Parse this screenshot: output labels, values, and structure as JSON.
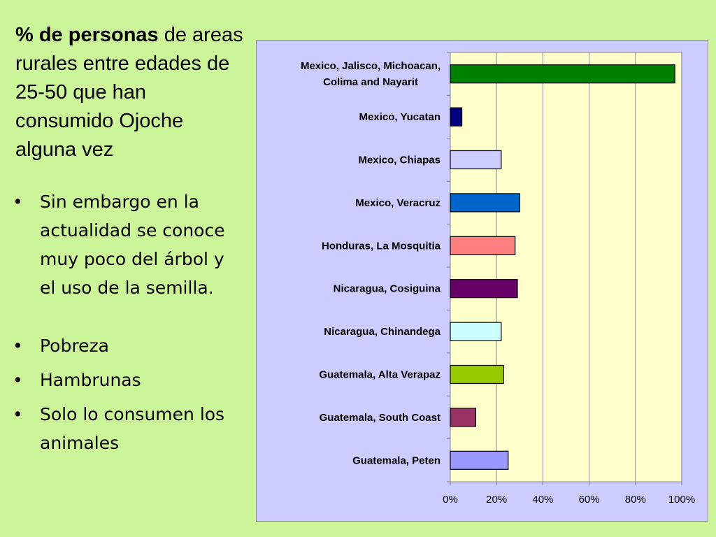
{
  "slide": {
    "title_bold": "% de personas",
    "title_rest": " de areas rurales entre edades de 25-50 que han consumido Ojoche alguna vez",
    "bullets": [
      {
        "marker": "•",
        "text": "Sin embargo  en la actualidad se conoce muy poco del árbol y el uso de la semilla."
      },
      {
        "marker": "•",
        "text": "Pobreza"
      },
      {
        "marker": "•",
        "text": "Hambrunas"
      },
      {
        "marker": "•",
        "text": "Solo lo consumen los animales"
      }
    ]
  },
  "chart_data": {
    "type": "bar",
    "orientation": "horizontal",
    "title": "",
    "xlabel": "",
    "ylabel": "",
    "xlim": [
      0,
      100
    ],
    "unit": "%",
    "grid": true,
    "legend": "none",
    "plot_background": "#ffffcc",
    "frame_background": "#ccccff",
    "x_ticks": [
      "0%",
      "20%",
      "40%",
      "60%",
      "80%",
      "100%"
    ],
    "categories": [
      [
        "Mexico, Jalisco, Michoacan,",
        "Colima and Nayarit"
      ],
      [
        "Mexico, Yucatan"
      ],
      [
        "Mexico, Chiapas"
      ],
      [
        "Mexico, Veracruz"
      ],
      [
        "Honduras, La Mosquitia"
      ],
      [
        "Nicaragua, Cosiguina"
      ],
      [
        "Nicaragua, Chinandega"
      ],
      [
        "Guatemala, Alta Verapaz"
      ],
      [
        "Guatemala, South Coast"
      ],
      [
        "Guatemala, Peten"
      ]
    ],
    "values": [
      97,
      5,
      22,
      30,
      28,
      29,
      22,
      23,
      11,
      25
    ],
    "colors": [
      "#008000",
      "#000080",
      "#ccccff",
      "#0066cc",
      "#ff8080",
      "#660066",
      "#ccffff",
      "#99cc00",
      "#993366",
      "#9999ff"
    ]
  }
}
